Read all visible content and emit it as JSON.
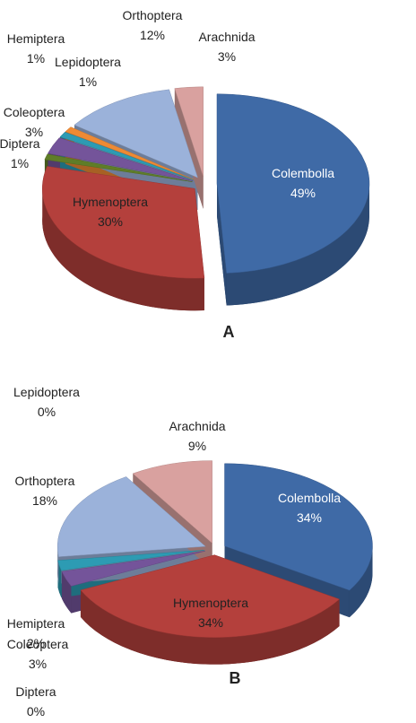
{
  "chart_data": [
    {
      "type": "pie",
      "title": "A",
      "categories": [
        "Colembolla",
        "Hymenoptera",
        "Diptera",
        "Coleoptera",
        "Hemiptera",
        "Lepidoptera",
        "Orthoptera",
        "Arachnida"
      ],
      "values": [
        49,
        30,
        1,
        3,
        1,
        1,
        12,
        3
      ],
      "value_labels": [
        "49%",
        "30%",
        "1%",
        "3%",
        "1%",
        "1%",
        "12%",
        "3%"
      ],
      "colors": [
        "#3f6aa6",
        "#b4403c",
        "#5f7d28",
        "#74549a",
        "#2d9bb3",
        "#ee8a34",
        "#9bb2da",
        "#d9a19f"
      ]
    },
    {
      "type": "pie",
      "title": "B",
      "categories": [
        "Colembolla",
        "Hymenoptera",
        "Diptera",
        "Coleoptera",
        "Hemiptera",
        "Lepidoptera",
        "Orthoptera",
        "Arachnida"
      ],
      "values": [
        34,
        34,
        0,
        3,
        2,
        0,
        18,
        9
      ],
      "value_labels": [
        "34%",
        "34%",
        "0%",
        "3%",
        "2%",
        "0%",
        "18%",
        "9%"
      ],
      "colors": [
        "#3f6aa6",
        "#b4403c",
        "#5f7d28",
        "#74549a",
        "#2d9bb3",
        "#ee8a34",
        "#9bb2da",
        "#d9a19f"
      ]
    }
  ]
}
